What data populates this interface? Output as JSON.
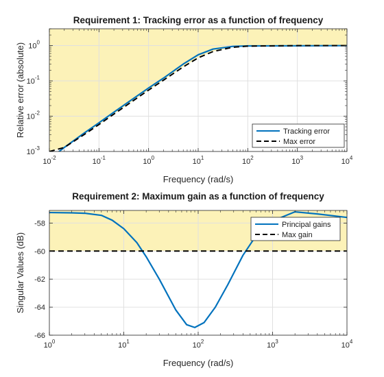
{
  "chart_data": [
    {
      "type": "line",
      "title": "Requirement 1: Tracking error as a function of frequency",
      "xlabel": "Frequency (rad/s)",
      "ylabel": "Relative error (absolute)",
      "xscale": "log",
      "yscale": "log",
      "xlim": [
        0.01,
        10000
      ],
      "ylim": [
        0.001,
        3
      ],
      "xtick_exponents": [
        "-2",
        "-1",
        "0",
        "1",
        "2",
        "3",
        "4"
      ],
      "ytick_exponents": [
        "-3",
        "-2",
        "-1",
        "0"
      ],
      "grid": true,
      "shaded_region": "above Max error (violation region)",
      "legend_position": "bottom-right",
      "series": [
        {
          "name": "Tracking error",
          "style": "solid",
          "color": "#0072BD",
          "x": [
            0.015,
            0.02,
            0.05,
            0.1,
            0.2,
            0.5,
            1,
            2,
            5,
            10,
            20,
            50,
            100,
            1000,
            10000
          ],
          "y": [
            0.00095,
            0.0013,
            0.0033,
            0.0065,
            0.013,
            0.032,
            0.063,
            0.12,
            0.3,
            0.55,
            0.8,
            0.95,
            0.98,
            0.99,
            1.0
          ]
        },
        {
          "name": "Max error",
          "style": "dashed",
          "color": "#000000",
          "x": [
            0.01,
            0.02,
            0.05,
            0.1,
            0.2,
            0.5,
            1,
            2,
            5,
            10,
            20,
            50,
            100,
            1000,
            10000
          ],
          "y": [
            0.001,
            0.0013,
            0.003,
            0.0058,
            0.0115,
            0.028,
            0.055,
            0.105,
            0.25,
            0.45,
            0.68,
            0.9,
            0.97,
            1.0,
            1.0
          ]
        }
      ]
    },
    {
      "type": "line",
      "title": "Requirement 2: Maximum gain as a function of frequency",
      "xlabel": "Frequency (rad/s)",
      "ylabel": "Singular Values (dB)",
      "xscale": "log",
      "xlim": [
        1,
        10000
      ],
      "ylim": [
        -66,
        -57.1
      ],
      "xtick_exponents": [
        "0",
        "1",
        "2",
        "3",
        "4"
      ],
      "yticks": [
        -58,
        -60,
        -62,
        -64,
        -66
      ],
      "grid": true,
      "shaded_region": "above Max gain (violation region)",
      "legend_position": "top-right",
      "series": [
        {
          "name": "Principal gains",
          "style": "solid",
          "color": "#0072BD",
          "x": [
            1,
            2,
            3,
            5,
            7,
            10,
            15,
            20,
            30,
            50,
            70,
            90,
            120,
            170,
            250,
            400,
            600,
            1000,
            2000,
            4000,
            10000
          ],
          "y": [
            -57.25,
            -57.27,
            -57.3,
            -57.45,
            -57.8,
            -58.4,
            -59.4,
            -60.4,
            -62.0,
            -64.2,
            -65.25,
            -65.45,
            -65.1,
            -64.0,
            -62.4,
            -60.3,
            -58.9,
            -57.85,
            -57.2,
            -57.35,
            -57.6
          ]
        },
        {
          "name": "Max gain",
          "style": "dashed",
          "color": "#000000",
          "x": [
            1,
            10000
          ],
          "y": [
            -60,
            -60
          ]
        }
      ]
    }
  ]
}
